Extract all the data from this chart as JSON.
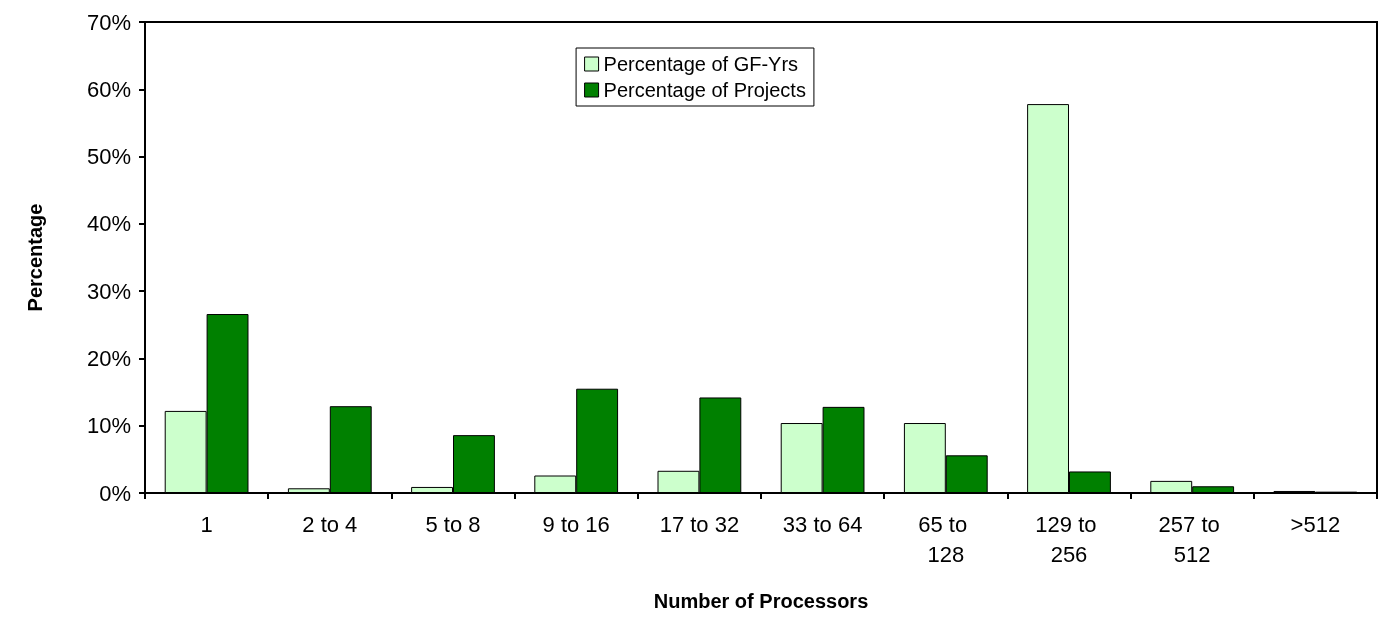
{
  "chart_data": {
    "type": "bar",
    "xlabel": "Number of Processors",
    "ylabel": "Percentage",
    "categories": [
      "1",
      "2 to 4",
      "5 to 8",
      "9 to 16",
      "17 to 32",
      "33 to 64",
      "65 to 128",
      "129 to 256",
      "257 to 512",
      ">512"
    ],
    "series": [
      {
        "name": "Percentage of GF-Yrs",
        "color": "#ccffcc",
        "values": [
          12.2,
          0.7,
          0.9,
          2.6,
          3.3,
          10.4,
          10.4,
          57.8,
          1.8,
          0.3
        ]
      },
      {
        "name": "Percentage of Projects",
        "color": "#008000",
        "values": [
          26.6,
          12.9,
          8.6,
          15.5,
          14.2,
          12.8,
          5.6,
          3.2,
          1.0,
          0.2
        ]
      }
    ],
    "ylim": [
      0,
      70
    ],
    "yticks": [
      {
        "value": 0,
        "label": "0%"
      },
      {
        "value": 10,
        "label": "10%"
      },
      {
        "value": 20,
        "label": "20%"
      },
      {
        "value": 30,
        "label": "30%"
      },
      {
        "value": 40,
        "label": "40%"
      },
      {
        "value": 50,
        "label": "50%"
      },
      {
        "value": 60,
        "label": "60%"
      },
      {
        "value": 70,
        "label": "70%"
      }
    ],
    "grid": false,
    "legend": "top"
  }
}
